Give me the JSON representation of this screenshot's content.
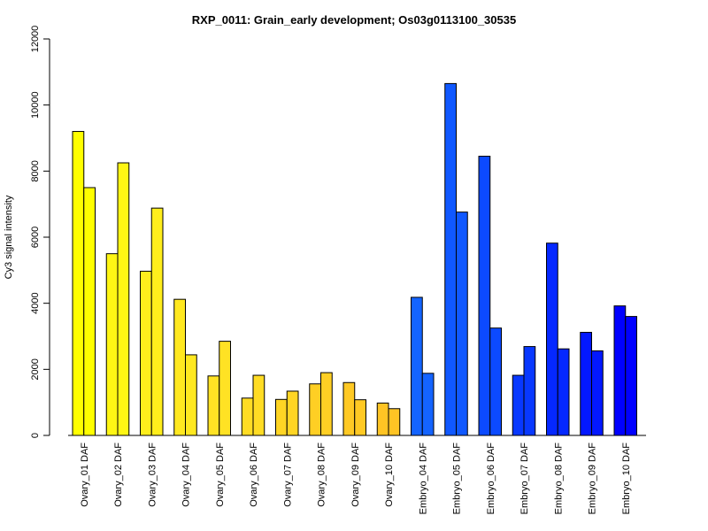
{
  "chart_data": {
    "type": "bar",
    "title": "RXP_0011: Grain_early development; Os03g0113100_30535",
    "ylabel": "Cy3 signal intensity",
    "xlabel": "",
    "ylim": [
      0,
      12000
    ],
    "yticks": [
      0,
      2000,
      4000,
      6000,
      8000,
      10000,
      12000
    ],
    "grid": false,
    "categories": [
      "Ovary_01 DAF",
      "Ovary_02 DAF",
      "Ovary_03 DAF",
      "Ovary_04 DAF",
      "Ovary_05 DAF",
      "Ovary_06 DAF",
      "Ovary_07 DAF",
      "Ovary_08 DAF",
      "Ovary_09 DAF",
      "Ovary_10 DAF",
      "Embryo_04 DAF",
      "Embryo_05 DAF",
      "Embryo_06 DAF",
      "Embryo_07 DAF",
      "Embryo_08 DAF",
      "Embryo_09 DAF",
      "Embryo_10 DAF"
    ],
    "colors": [
      "#ffff00",
      "#fff614",
      "#ffee1c",
      "#ffe820",
      "#ffe224",
      "#ffdc24",
      "#ffd524",
      "#ffcf24",
      "#ffc924",
      "#ffc424",
      "#1464ff",
      "#1058ff",
      "#0c4aff",
      "#0838ff",
      "#0528ff",
      "#0318ff",
      "#0000ff"
    ],
    "series": [
      {
        "values": [
          9200,
          5500,
          4970,
          4120,
          1800,
          1130,
          1090,
          1560,
          1600,
          980,
          4180,
          10650,
          8450,
          1820,
          5820,
          3120,
          3920
        ]
      },
      {
        "values": [
          7500,
          8250,
          6880,
          2440,
          2850,
          1820,
          1340,
          1900,
          1080,
          810,
          1880,
          6760,
          3250,
          2690,
          2620,
          2560,
          3600
        ]
      }
    ]
  }
}
